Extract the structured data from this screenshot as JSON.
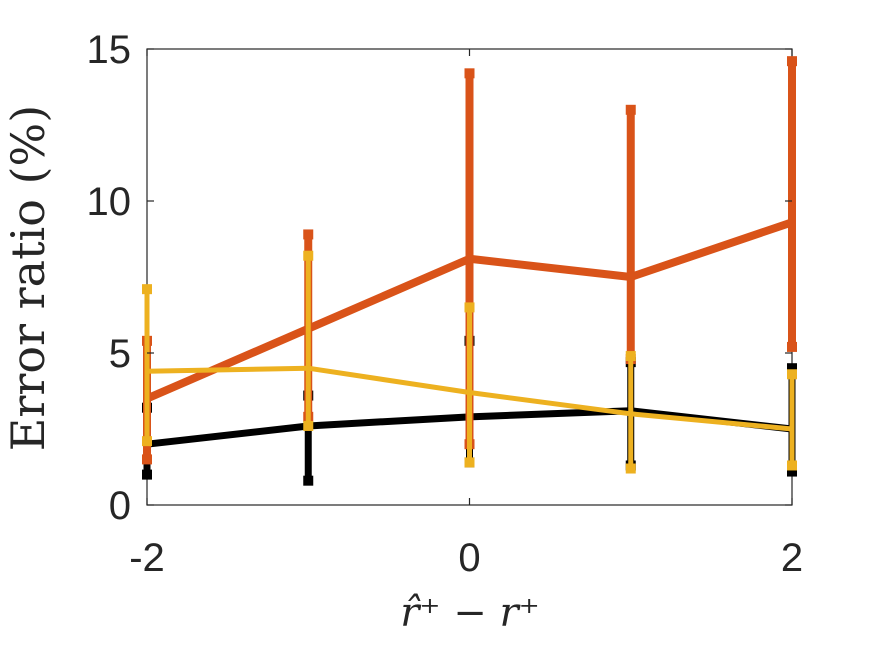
{
  "chart_data": {
    "type": "line",
    "ylabel": "Error ratio (%)",
    "xlabel": "r̂⁺ − r⁺",
    "xlim": [
      -2,
      2
    ],
    "ylim": [
      0,
      15
    ],
    "x_ticks": [
      "-2",
      "0",
      "2"
    ],
    "y_ticks": [
      "0",
      "5",
      "10",
      "15"
    ],
    "grid": false,
    "legend": "none",
    "series": [
      {
        "color": "#000000",
        "x": [
          -2,
          -1,
          0,
          1,
          2
        ],
        "y": [
          2.0,
          2.6,
          2.9,
          3.1,
          2.5
        ],
        "err_low": [
          1.0,
          0.8,
          1.4,
          1.3,
          1.1
        ],
        "err_high": [
          3.2,
          3.6,
          5.4,
          4.7,
          4.5
        ]
      },
      {
        "color": "#D95319",
        "x": [
          -2,
          -1,
          0,
          1,
          2
        ],
        "y": [
          3.5,
          5.8,
          8.1,
          7.5,
          9.3
        ],
        "err_low": [
          1.5,
          2.9,
          2.0,
          4.8,
          5.2
        ],
        "err_high": [
          5.4,
          8.9,
          14.2,
          13.0,
          14.6
        ]
      },
      {
        "color": "#EDB120",
        "x": [
          -2,
          -1,
          0,
          1,
          2
        ],
        "y": [
          4.4,
          4.5,
          3.7,
          3.0,
          2.5
        ],
        "err_low": [
          2.1,
          2.6,
          1.4,
          1.2,
          1.3
        ],
        "err_high": [
          7.1,
          8.2,
          6.5,
          4.9,
          4.3
        ]
      }
    ]
  }
}
